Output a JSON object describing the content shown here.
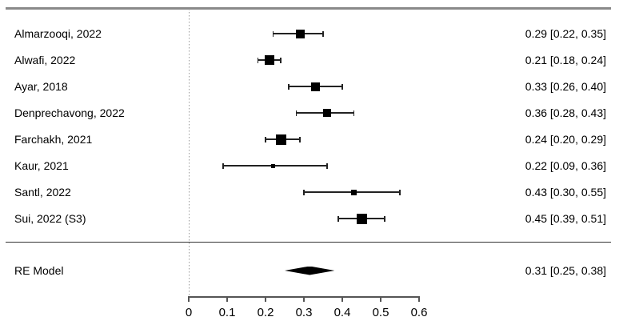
{
  "chart_data": {
    "type": "forest",
    "title": "",
    "xlabel": "",
    "xlim": [
      0,
      0.6
    ],
    "reference_line": 0,
    "legend": "none",
    "studies": [
      {
        "label": "Almarzooqi, 2022",
        "estimate": 0.29,
        "ci_lower": 0.22,
        "ci_upper": 0.35,
        "estimate_label": "0.29 [0.22, 0.35]",
        "square_size": 11
      },
      {
        "label": "Alwafi, 2022",
        "estimate": 0.21,
        "ci_lower": 0.18,
        "ci_upper": 0.24,
        "estimate_label": "0.21 [0.18, 0.24]",
        "square_size": 12
      },
      {
        "label": "Ayar, 2018",
        "estimate": 0.33,
        "ci_lower": 0.26,
        "ci_upper": 0.4,
        "estimate_label": "0.33 [0.26, 0.40]",
        "square_size": 11
      },
      {
        "label": "Denprechavong, 2022",
        "estimate": 0.36,
        "ci_lower": 0.28,
        "ci_upper": 0.43,
        "estimate_label": "0.36 [0.28, 0.43]",
        "square_size": 10
      },
      {
        "label": "Farchakh, 2021",
        "estimate": 0.24,
        "ci_lower": 0.2,
        "ci_upper": 0.29,
        "estimate_label": "0.24 [0.20, 0.29]",
        "square_size": 13
      },
      {
        "label": "Kaur, 2021",
        "estimate": 0.22,
        "ci_lower": 0.09,
        "ci_upper": 0.36,
        "estimate_label": "0.22 [0.09, 0.36]",
        "square_size": 5
      },
      {
        "label": "Santl, 2022",
        "estimate": 0.43,
        "ci_lower": 0.3,
        "ci_upper": 0.55,
        "estimate_label": "0.43 [0.30, 0.55]",
        "square_size": 7
      },
      {
        "label": "Sui, 2022 (S3)",
        "estimate": 0.45,
        "ci_lower": 0.39,
        "ci_upper": 0.51,
        "estimate_label": "0.45 [0.39, 0.51]",
        "square_size": 13
      }
    ],
    "summary": {
      "label": "RE Model",
      "estimate": 0.31,
      "ci_lower": 0.25,
      "ci_upper": 0.38,
      "estimate_label": "0.31 [0.25, 0.38]"
    },
    "axis": {
      "ticks": [
        0,
        0.1,
        0.2,
        0.3,
        0.4,
        0.5,
        0.6
      ],
      "tick_labels": [
        "0",
        "0.1",
        "0.2",
        "0.3",
        "0.4",
        "0.5",
        "0.6"
      ]
    }
  },
  "colors": {
    "marker": "#000000",
    "ci_line": "#222222",
    "reference_line": "#9a9a9a",
    "top_rule": "#8a8a8a",
    "summary_rule": "#333333",
    "axis": "#555555",
    "text": "#000000",
    "background": "#ffffff"
  }
}
